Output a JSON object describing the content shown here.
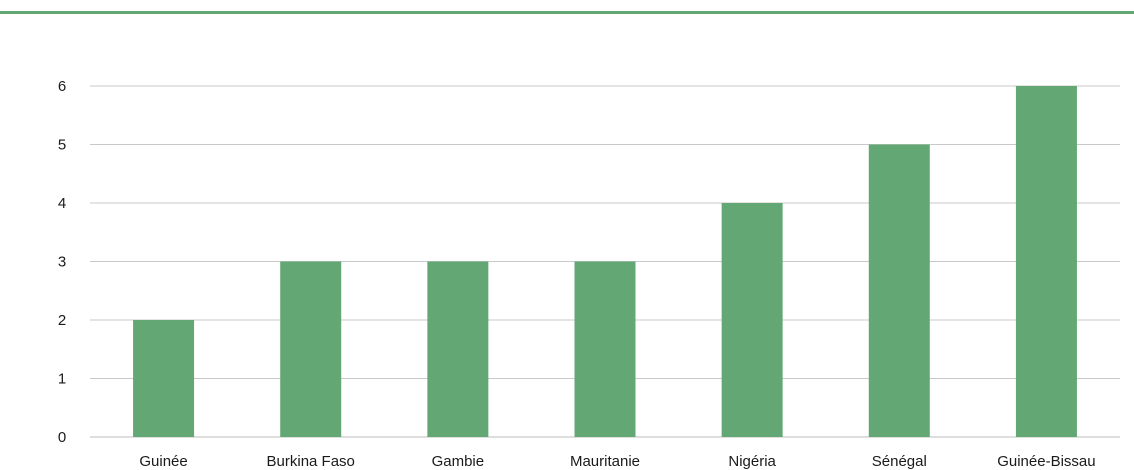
{
  "colors": {
    "accent": "#63a874",
    "bar": "#63a874",
    "grid": "#c9c9c9"
  },
  "chart_data": {
    "type": "bar",
    "title": "",
    "xlabel": "",
    "ylabel": "",
    "categories": [
      "Guinée",
      "Burkina Faso",
      "Gambie",
      "Mauritanie",
      "Nigéria",
      "Sénégal",
      "Guinée-Bissau"
    ],
    "values": [
      2,
      3,
      3,
      3,
      4,
      5,
      6
    ],
    "ylim": [
      0,
      6
    ],
    "yticks": [
      "0",
      "1",
      "2",
      "3",
      "4",
      "5",
      "6"
    ],
    "grid": true,
    "legend": "none"
  }
}
